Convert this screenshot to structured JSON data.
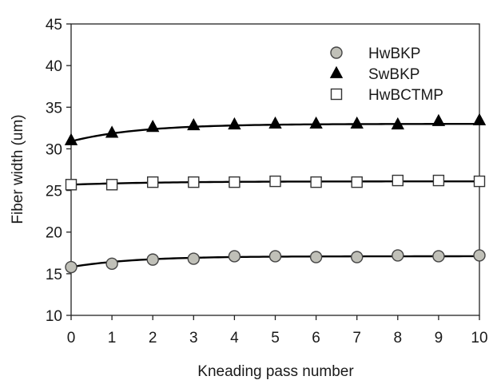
{
  "chart_data": {
    "type": "scatter",
    "title": "",
    "xlabel": "Kneading pass number",
    "ylabel": "Fiber width (um)",
    "xlim": [
      0,
      10
    ],
    "ylim": [
      10,
      45
    ],
    "x": [
      0,
      1,
      2,
      3,
      4,
      5,
      6,
      7,
      8,
      9,
      10
    ],
    "x_ticks": [
      "0",
      "1",
      "2",
      "3",
      "4",
      "5",
      "6",
      "7",
      "8",
      "9",
      "10"
    ],
    "y_ticks": [
      "10",
      "15",
      "20",
      "25",
      "30",
      "35",
      "40",
      "45"
    ],
    "grid": false,
    "legend_position": "top-right",
    "series": [
      {
        "name": "HwBKP",
        "marker": "circle",
        "marker_fill": "#c0c0b8",
        "marker_stroke": "#444444",
        "values": [
          15.8,
          16.2,
          16.7,
          16.8,
          17.1,
          17.1,
          17.0,
          17.0,
          17.2,
          17.1,
          17.2
        ],
        "fit": {
          "start": 15.8,
          "end": 17.1,
          "rate": 0.65
        }
      },
      {
        "name": "SwBKP",
        "marker": "triangle",
        "marker_fill": "#000000",
        "marker_stroke": "#000000",
        "values": [
          31.0,
          31.9,
          32.6,
          32.8,
          32.9,
          33.0,
          33.0,
          33.0,
          32.9,
          33.3,
          33.4
        ],
        "fit": {
          "start": 30.9,
          "end": 33.0,
          "rate": 0.6
        }
      },
      {
        "name": "HwBCTMP",
        "marker": "square",
        "marker_fill": "#ffffff",
        "marker_stroke": "#333333",
        "values": [
          25.7,
          25.7,
          26.0,
          26.0,
          26.0,
          26.1,
          26.0,
          26.0,
          26.2,
          26.2,
          26.1
        ],
        "fit": {
          "start": 25.7,
          "end": 26.1,
          "rate": 0.45
        }
      }
    ]
  }
}
